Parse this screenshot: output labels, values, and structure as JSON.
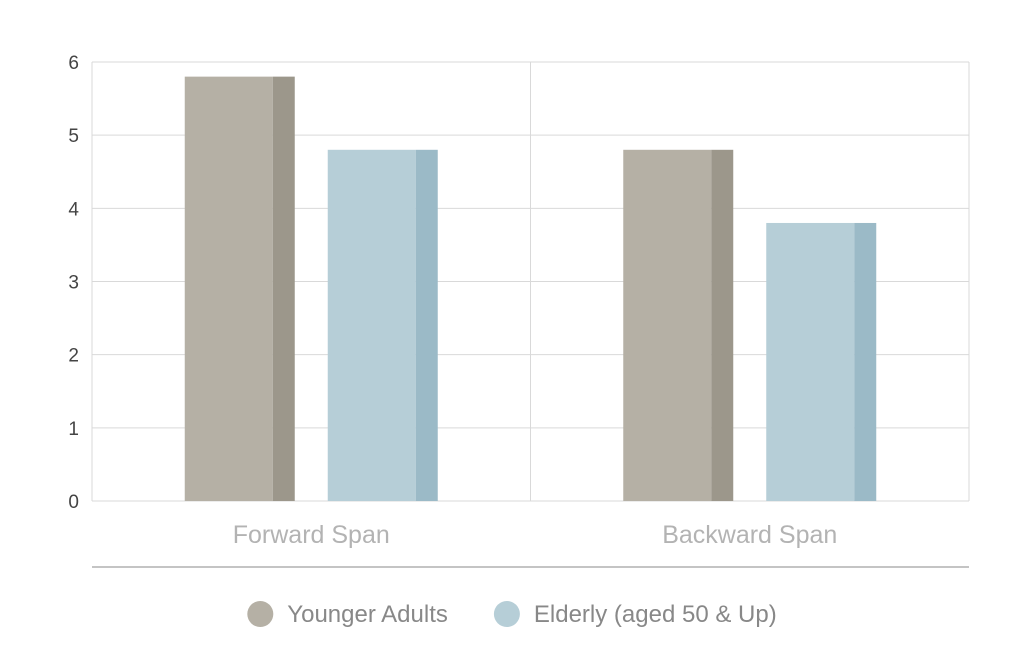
{
  "chart_data": {
    "type": "bar",
    "title": "",
    "xlabel": "",
    "ylabel": "",
    "categories": [
      "Forward Span",
      "Backward Span"
    ],
    "series": [
      {
        "name": "Younger Adults",
        "values": [
          5.8,
          4.8
        ],
        "color": "#b5b0a5",
        "shade": "#9c978b"
      },
      {
        "name": "Elderly (aged 50 & Up)",
        "values": [
          4.8,
          3.8
        ],
        "color": "#b6ced7",
        "shade": "#9bbac7"
      }
    ],
    "ylim": [
      0,
      6
    ],
    "yticks": [
      0,
      1,
      2,
      3,
      4,
      5,
      6
    ],
    "grid": true,
    "legend_position": "bottom-center",
    "colors": {
      "grid": "#d9d9d9",
      "axis_rule": "#c4c4c4"
    }
  }
}
